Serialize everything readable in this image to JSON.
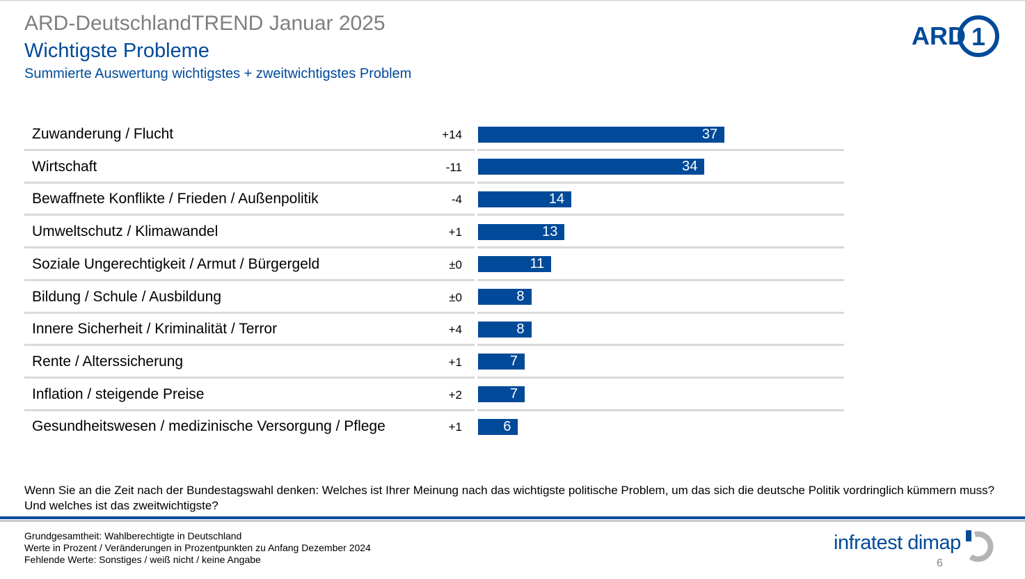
{
  "header": {
    "brand_title": "ARD-DeutschlandTREND Januar 2025",
    "main_title": "Wichtigste Probleme",
    "subtitle": "Summierte Auswertung wichtigstes + zweitwichtigstes Problem"
  },
  "logos": {
    "ard_text": "ARD",
    "ard_numeral": "1",
    "pollster": "infratest dimap"
  },
  "colors": {
    "accent": "#004a99",
    "title_grey": "#7f7f7f",
    "separator": "#d9d9d9"
  },
  "chart_data": {
    "type": "bar",
    "orientation": "horizontal",
    "categories": [
      "Zuwanderung / Flucht",
      "Wirtschaft",
      "Bewaffnete Konflikte / Frieden / Außenpolitik",
      "Umweltschutz / Klimawandel",
      "Soziale Ungerechtigkeit / Armut / Bürgergeld",
      "Bildung / Schule / Ausbildung",
      "Innere Sicherheit / Kriminalität / Terror",
      "Rente / Alterssicherung",
      "Inflation / steigende Preise",
      "Gesundheitswesen / medizinische Versorgung / Pflege"
    ],
    "values": [
      37,
      34,
      14,
      13,
      11,
      8,
      8,
      7,
      7,
      6
    ],
    "changes": [
      "+14",
      "-11",
      "-4",
      "+1",
      "±0",
      "±0",
      "+4",
      "+1",
      "+2",
      "+1"
    ],
    "bar_color": "#004a99",
    "xlim": [
      0,
      55
    ],
    "grid": false
  },
  "question": "Wenn Sie an die Zeit nach der Bundestagswahl denken: Welches ist Ihrer Meinung nach das wichtigste politische Problem, um das sich die deutsche Politik vordringlich kümmern muss? Und welches ist das zweitwichtigste?",
  "footnotes": [
    "Grundgesamtheit: Wahlberechtigte in Deutschland",
    "Werte in Prozent / Veränderungen in Prozentpunkten zu Anfang Dezember 2024",
    "Fehlende Werte: Sonstiges / weiß nicht / keine Angabe"
  ],
  "page_number": "6"
}
